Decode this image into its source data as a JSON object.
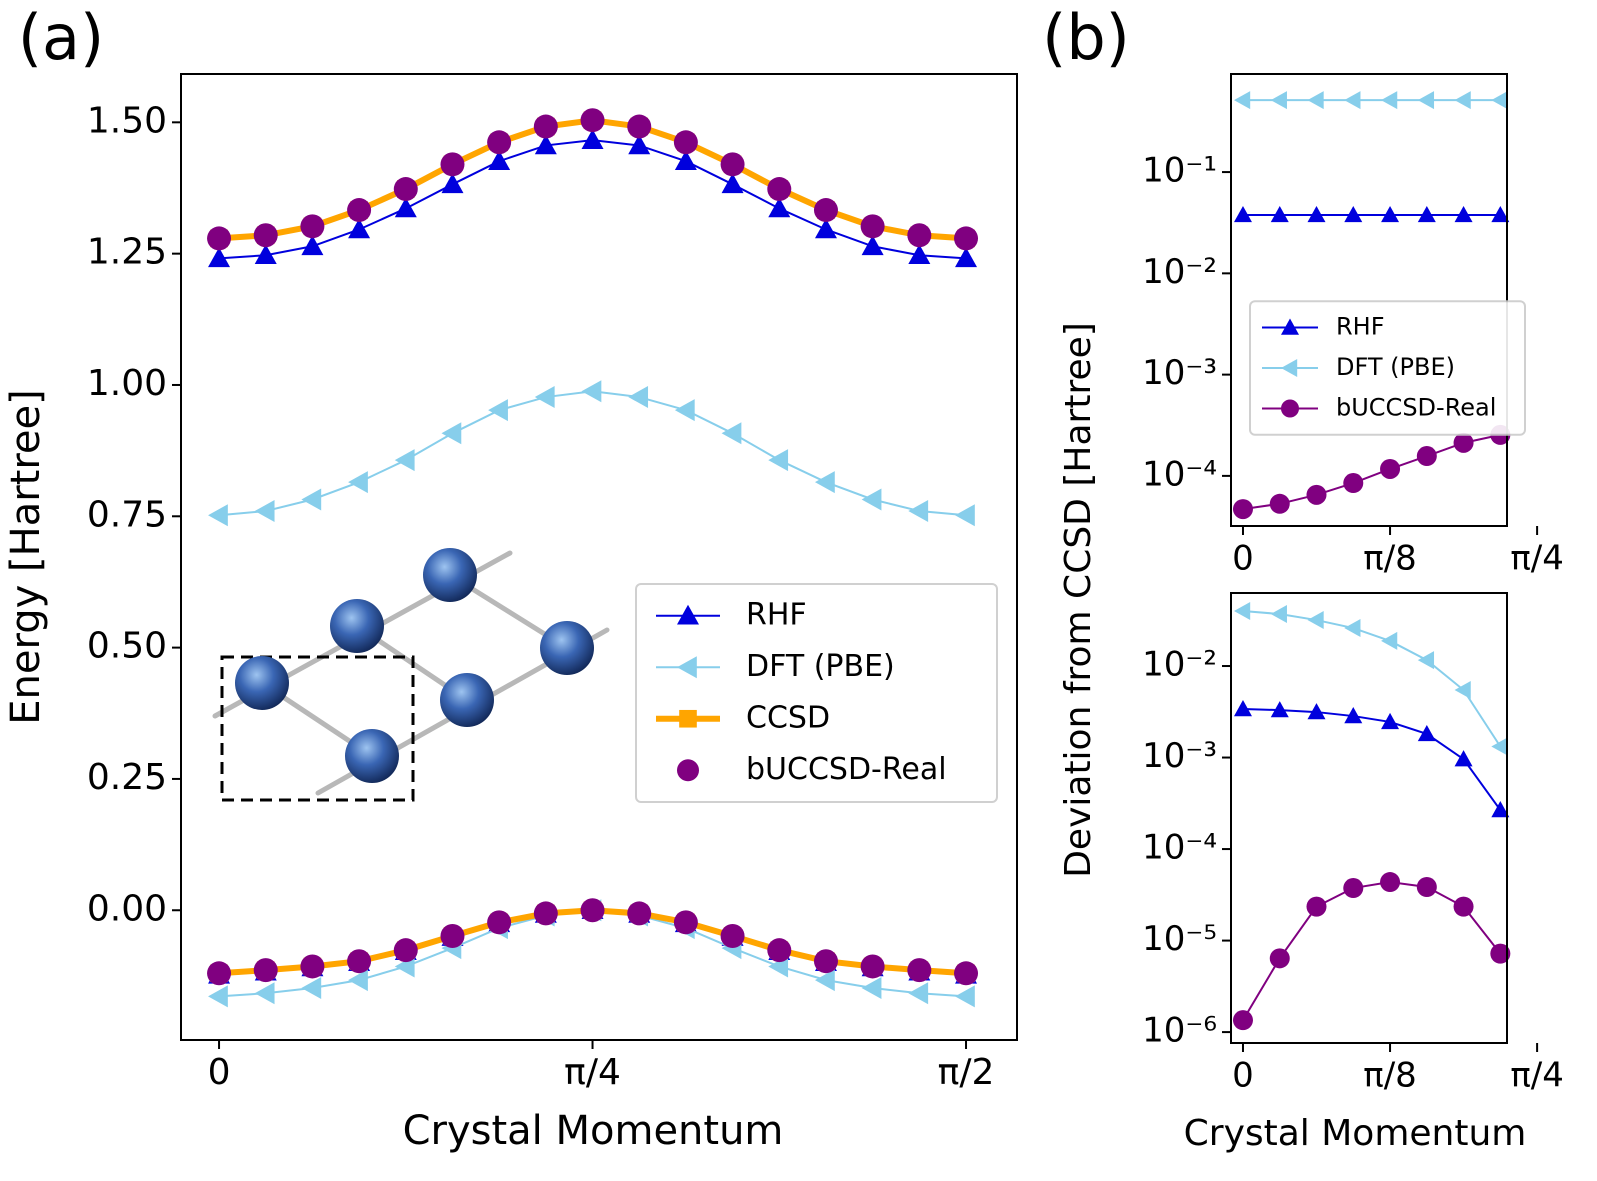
{
  "chart_data": [
    {
      "type": "line",
      "panel": "(a)",
      "xlabel": "Crystal Momentum",
      "ylabel": "Energy [Hartree]",
      "x": [
        0,
        0.0982,
        0.1963,
        0.2945,
        0.3927,
        0.4909,
        0.589,
        0.6872,
        0.7854,
        0.8836,
        0.9817,
        1.0799,
        1.1781,
        1.2763,
        1.3744,
        1.4726,
        1.5708
      ],
      "xlim": [
        -0.08,
        1.678
      ],
      "xticks": [
        0,
        {
          "value": 0.7854,
          "label": "π/4"
        },
        {
          "value": 1.5708,
          "label": "π/2"
        }
      ],
      "ylim": [
        -0.247,
        1.592
      ],
      "yticks": [
        {
          "value": 0,
          "label": "0.00"
        },
        {
          "value": 0.25,
          "label": "0.25"
        },
        {
          "value": 0.5,
          "label": "0.50"
        },
        {
          "value": 0.75,
          "label": "0.75"
        },
        {
          "value": 1.0,
          "label": "1.00"
        },
        {
          "value": 1.25,
          "label": "1.25"
        },
        {
          "value": 1.5,
          "label": "1.50"
        }
      ],
      "legend": "center right",
      "series": [
        {
          "name": "RHF",
          "color": "#0000dd",
          "marker": "triangle-up",
          "linewidth": 2,
          "bands": [
            [
              1.241,
              1.247,
              1.264,
              1.296,
              1.336,
              1.382,
              1.426,
              1.456,
              1.466,
              1.456,
              1.426,
              1.382,
              1.336,
              1.296,
              1.264,
              1.247,
              1.241
            ],
            [
              -0.123,
              -0.117,
              -0.109,
              -0.099,
              -0.078,
              -0.051,
              -0.025,
              -0.007,
              0,
              -0.007,
              -0.025,
              -0.051,
              -0.078,
              -0.099,
              -0.109,
              -0.117,
              -0.123
            ]
          ]
        },
        {
          "name": "DFT (PBE)",
          "color": "#87ceeb",
          "marker": "triangle-left",
          "linewidth": 2,
          "bands": [
            [
              0.752,
              0.76,
              0.782,
              0.815,
              0.857,
              0.908,
              0.952,
              0.977,
              0.988,
              0.977,
              0.952,
              0.908,
              0.857,
              0.815,
              0.782,
              0.76,
              0.752
            ],
            [
              -0.164,
              -0.158,
              -0.148,
              -0.133,
              -0.107,
              -0.072,
              -0.034,
              -0.01,
              0,
              -0.01,
              -0.034,
              -0.072,
              -0.107,
              -0.133,
              -0.148,
              -0.158,
              -0.164
            ]
          ]
        },
        {
          "name": "CCSD",
          "color": "#ffa500",
          "marker": "square",
          "linewidth": 6,
          "bands": [
            [
              1.279,
              1.285,
              1.302,
              1.333,
              1.373,
              1.42,
              1.462,
              1.492,
              1.504,
              1.492,
              1.462,
              1.42,
              1.373,
              1.333,
              1.302,
              1.285,
              1.279
            ],
            [
              -0.12,
              -0.114,
              -0.107,
              -0.097,
              -0.076,
              -0.049,
              -0.023,
              -0.006,
              0,
              -0.006,
              -0.023,
              -0.049,
              -0.076,
              -0.097,
              -0.107,
              -0.114,
              -0.12
            ]
          ]
        },
        {
          "name": "bUCCSD-Real",
          "color": "#800080",
          "marker": "circle",
          "linewidth": 0,
          "bands": [
            [
              1.279,
              1.285,
              1.302,
              1.333,
              1.373,
              1.42,
              1.462,
              1.492,
              1.504,
              1.492,
              1.462,
              1.42,
              1.373,
              1.333,
              1.302,
              1.285,
              1.279
            ],
            [
              -0.12,
              -0.114,
              -0.107,
              -0.097,
              -0.076,
              -0.049,
              -0.023,
              -0.006,
              0,
              -0.006,
              -0.023,
              -0.049,
              -0.076,
              -0.097,
              -0.107,
              -0.114,
              -0.12
            ]
          ]
        }
      ]
    },
    {
      "type": "line",
      "panel": "(b)",
      "ylabel": "Deviation from CCSD [Hartree]",
      "yscale": "log",
      "x": [
        0,
        0.0982,
        0.1963,
        0.2945,
        0.3927,
        0.4909,
        0.589,
        0.6872
      ],
      "xlim": [
        -0.032,
        0.705
      ],
      "xticks": [
        0,
        {
          "value": 0.3927,
          "label": "π/8"
        },
        {
          "value": 0.7854,
          "label": "π/4"
        }
      ],
      "ylim": [
        3.2e-05,
        0.93
      ],
      "yticks": [
        {
          "value": 0.0001,
          "label": "10⁻⁴"
        },
        {
          "value": 0.001,
          "label": "10⁻³"
        },
        {
          "value": 0.01,
          "label": "10⁻²"
        },
        {
          "value": 0.1,
          "label": "10⁻¹"
        }
      ],
      "legend": "center left",
      "series": [
        {
          "name": "RHF",
          "color": "#0000dd",
          "marker": "triangle-up",
          "linewidth": 2,
          "values": [
            0.0377,
            0.0377,
            0.0377,
            0.0377,
            0.0377,
            0.0377,
            0.0377,
            0.0377
          ]
        },
        {
          "name": "DFT (PBE)",
          "color": "#87ceeb",
          "marker": "triangle-left",
          "linewidth": 2,
          "values": [
            0.514,
            0.514,
            0.514,
            0.514,
            0.514,
            0.514,
            0.514,
            0.514
          ]
        },
        {
          "name": "bUCCSD-Real",
          "color": "#800080",
          "marker": "circle",
          "linewidth": 2,
          "values": [
            4.7e-05,
            5.3e-05,
            6.5e-05,
            8.5e-05,
            0.000117,
            0.000157,
            0.000212,
            0.000254
          ]
        }
      ]
    },
    {
      "type": "line",
      "xlabel": "Crystal Momentum",
      "yscale": "log",
      "x": [
        0,
        0.0982,
        0.1963,
        0.2945,
        0.3927,
        0.4909,
        0.589,
        0.6872
      ],
      "xlim": [
        -0.032,
        0.705
      ],
      "xticks": [
        0,
        {
          "value": 0.3927,
          "label": "π/8"
        },
        {
          "value": 0.7854,
          "label": "π/4"
        }
      ],
      "ylim": [
        7.6e-07,
        0.0628
      ],
      "yticks": [
        {
          "value": 1e-06,
          "label": "10⁻⁶"
        },
        {
          "value": 1e-05,
          "label": "10⁻⁵"
        },
        {
          "value": 0.0001,
          "label": "10⁻⁴"
        },
        {
          "value": 0.001,
          "label": "10⁻³"
        },
        {
          "value": 0.01,
          "label": "10⁻²"
        }
      ],
      "series": [
        {
          "color": "#87ceeb",
          "marker": "triangle-left",
          "linewidth": 2,
          "values": [
            0.0399,
            0.037,
            0.0318,
            0.026,
            0.0188,
            0.0116,
            0.00547,
            0.00132
          ]
        },
        {
          "color": "#0000dd",
          "marker": "triangle-up",
          "linewidth": 2,
          "values": [
            0.00339,
            0.0033,
            0.00314,
            0.00284,
            0.00245,
            0.00181,
            0.00096,
            0.000267
          ]
        },
        {
          "color": "#800080",
          "marker": "circle",
          "linewidth": 2,
          "values": [
            1.35e-06,
            6.4e-06,
            2.35e-05,
            3.75e-05,
            4.36e-05,
            3.85e-05,
            2.35e-05,
            7.2e-06
          ]
        }
      ]
    }
  ]
}
